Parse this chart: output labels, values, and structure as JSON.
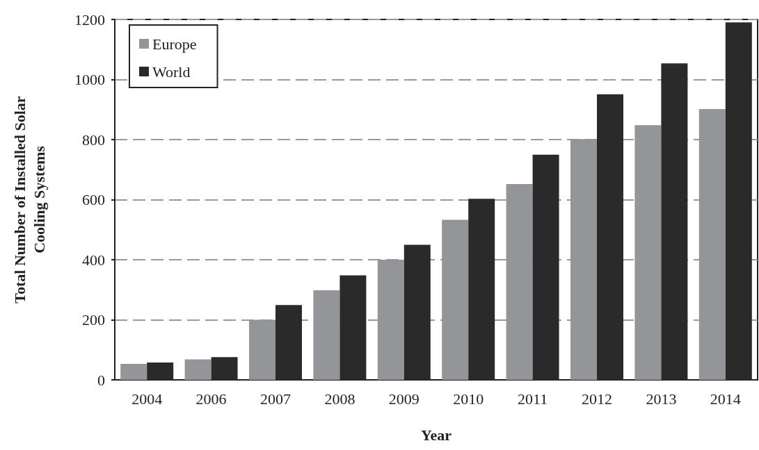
{
  "chart_data": {
    "type": "bar",
    "xlabel": "Year",
    "ylabel": "Total Number of Installed Solar\nCooling Systems",
    "categories": [
      "2004",
      "2006",
      "2007",
      "2008",
      "2009",
      "2010",
      "2011",
      "2012",
      "2013",
      "2014"
    ],
    "series": [
      {
        "name": "Europe",
        "color": "#939598",
        "values": [
          53,
          68,
          200,
          298,
          400,
          533,
          652,
          802,
          848,
          902
        ]
      },
      {
        "name": "World",
        "color": "#2b2a2a",
        "values": [
          58,
          76,
          249,
          348,
          450,
          603,
          750,
          951,
          1054,
          1190
        ]
      }
    ],
    "ylim": [
      0,
      1200
    ],
    "yticks": [
      0,
      200,
      400,
      600,
      800,
      1000,
      1200
    ],
    "grid": "y",
    "legend": "top left"
  }
}
